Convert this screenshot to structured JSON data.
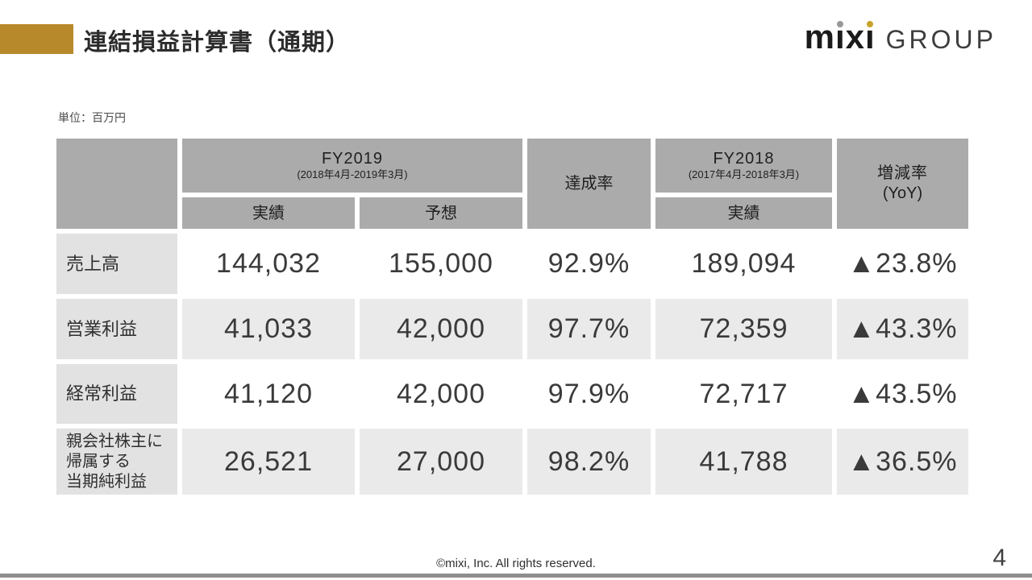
{
  "slide": {
    "title": "連結損益計算書（通期）",
    "unit_label": "単位：百万円",
    "copyright": "©mixi, Inc. All rights reserved.",
    "page_number": "4"
  },
  "logo": {
    "brand": "mixi",
    "letters": {
      "m": "m",
      "i1": "ı",
      "x": "x",
      "i2": "ı"
    },
    "suffix": "GROUP"
  },
  "table": {
    "header": {
      "fy2019": "FY2019",
      "fy2019_period": "(2018年4月-2019年3月)",
      "fy2019_actual": "実績",
      "fy2019_forecast": "予想",
      "achievement": "達成率",
      "fy2018": "FY2018",
      "fy2018_period": "(2017年4月-2018年3月)",
      "fy2018_actual": "実績",
      "yoy": "増減率",
      "yoy_sub": "(YoY)"
    },
    "rows": [
      {
        "label": "売上高",
        "values": [
          "144,032",
          "155,000",
          "92.9%",
          "189,094",
          "▲23.8%"
        ]
      },
      {
        "label": "営業利益",
        "values": [
          "41,033",
          "42,000",
          "97.7%",
          "72,359",
          "▲43.3%"
        ]
      },
      {
        "label": "経常利益",
        "values": [
          "41,120",
          "42,000",
          "97.9%",
          "72,717",
          "▲43.5%"
        ]
      },
      {
        "label": "親会社株主に\n帰属する\n当期純利益",
        "values": [
          "26,521",
          "27,000",
          "98.2%",
          "41,788",
          "▲36.5%"
        ]
      }
    ]
  },
  "chart_data": {
    "type": "table",
    "title": "連結損益計算書（通期）",
    "unit": "百万円",
    "columns": [
      "FY2019 実績",
      "FY2019 予想",
      "達成率",
      "FY2018 実績",
      "増減率 (YoY)"
    ],
    "row_labels": [
      "売上高",
      "営業利益",
      "経常利益",
      "親会社株主に帰属する当期純利益"
    ],
    "values": [
      [
        144032,
        155000,
        "92.9%",
        189094,
        "-23.8%"
      ],
      [
        41033,
        42000,
        "97.7%",
        72359,
        "-43.3%"
      ],
      [
        41120,
        42000,
        "97.9%",
        72717,
        "-43.5%"
      ],
      [
        26521,
        27000,
        "98.2%",
        41788,
        "-36.5%"
      ]
    ]
  },
  "colors": {
    "accent_gold": "#B8892B",
    "header_gray": "#ABABAB",
    "row_label_gray": "#E2E2E2",
    "zebra_gray": "#EAEAEA",
    "footer_bar_gray": "#8E8E8E",
    "logo_dot_gray": "#97979B",
    "logo_dot_gold": "#C7A22B"
  }
}
